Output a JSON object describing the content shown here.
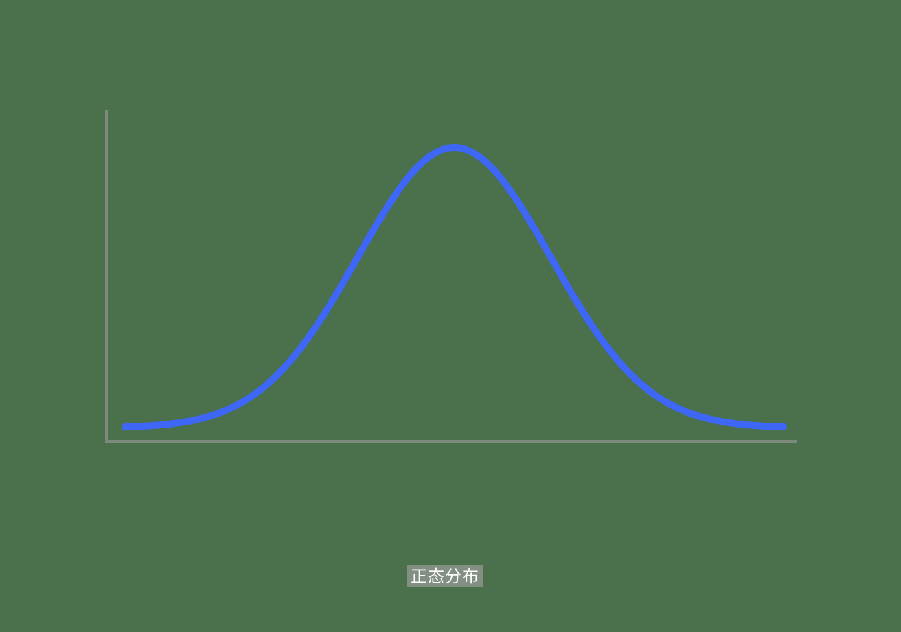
{
  "diagram": {
    "caption": "正态分布",
    "colors": {
      "background": "#4a714b",
      "curve": "#3e66f7",
      "axis": "#7c8a7c"
    },
    "curve": {
      "shape": "normal-distribution (bell curve)",
      "mean": 0,
      "std_dev": 1,
      "x_range": [
        -3.4,
        3.4
      ]
    }
  }
}
